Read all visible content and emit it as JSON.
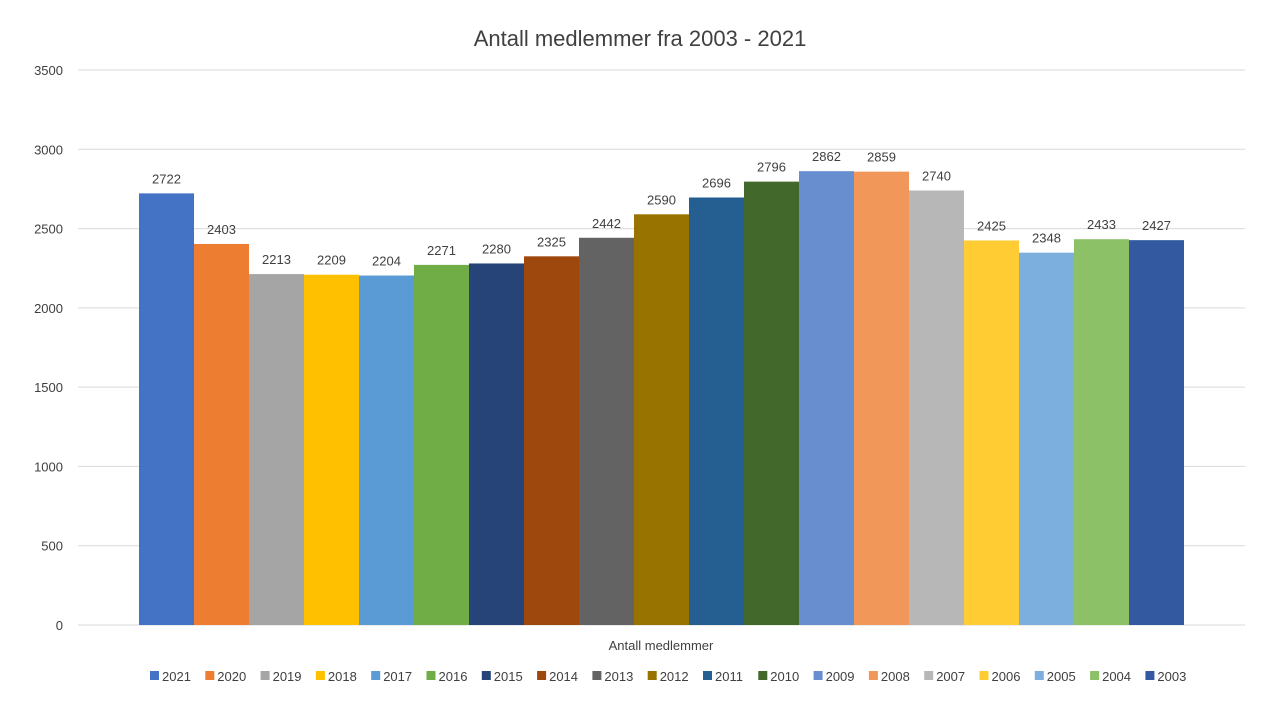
{
  "chart_data": {
    "type": "bar",
    "title": "Antall medlemmer fra 2003 - 2021",
    "xlabel": "Antall medlemmer",
    "ylabel": "",
    "categories": [
      "Antall medlemmer"
    ],
    "ylim": [
      0,
      3500
    ],
    "yticks": [
      "0",
      "500",
      "1000",
      "1500",
      "2000",
      "2500",
      "3000",
      "3500"
    ],
    "grid": true,
    "legend_position": "bottom",
    "series": [
      {
        "name": "2021",
        "values": [
          2722
        ],
        "color": "#4472c4"
      },
      {
        "name": "2020",
        "values": [
          2403
        ],
        "color": "#ed7d31"
      },
      {
        "name": "2019",
        "values": [
          2213
        ],
        "color": "#a5a5a5"
      },
      {
        "name": "2018",
        "values": [
          2209
        ],
        "color": "#ffc000"
      },
      {
        "name": "2017",
        "values": [
          2204
        ],
        "color": "#5b9bd5"
      },
      {
        "name": "2016",
        "values": [
          2271
        ],
        "color": "#70ad47"
      },
      {
        "name": "2015",
        "values": [
          2280
        ],
        "color": "#264478"
      },
      {
        "name": "2014",
        "values": [
          2325
        ],
        "color": "#9e480e"
      },
      {
        "name": "2013",
        "values": [
          2442
        ],
        "color": "#636363"
      },
      {
        "name": "2012",
        "values": [
          2590
        ],
        "color": "#997300"
      },
      {
        "name": "2011",
        "values": [
          2696
        ],
        "color": "#255e91"
      },
      {
        "name": "2010",
        "values": [
          2796
        ],
        "color": "#43682b"
      },
      {
        "name": "2009",
        "values": [
          2862
        ],
        "color": "#698ed0"
      },
      {
        "name": "2008",
        "values": [
          2859
        ],
        "color": "#f1975a"
      },
      {
        "name": "2007",
        "values": [
          2740
        ],
        "color": "#b7b7b7"
      },
      {
        "name": "2006",
        "values": [
          2425
        ],
        "color": "#ffcd33"
      },
      {
        "name": "2005",
        "values": [
          2348
        ],
        "color": "#7cafdd"
      },
      {
        "name": "2004",
        "values": [
          2433
        ],
        "color": "#8cc168"
      },
      {
        "name": "2003",
        "values": [
          2427
        ],
        "color": "#335aa1"
      }
    ]
  }
}
